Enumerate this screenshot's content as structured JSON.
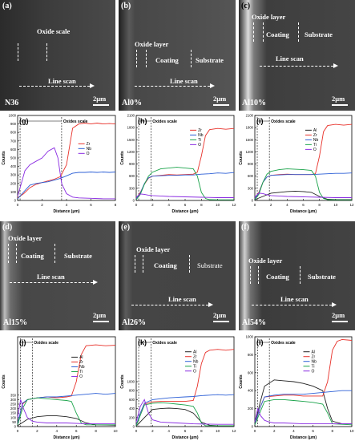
{
  "sem_panels": [
    {
      "id": "a",
      "label": "(a)",
      "sample": "N36",
      "annotations": [
        "Oxide scale"
      ],
      "line_scan": "Line scan",
      "scale": "2μm"
    },
    {
      "id": "b",
      "label": "(b)",
      "sample": "Al0%",
      "annotations": [
        "Oxide layer",
        "Coating",
        "Substrate"
      ],
      "line_scan": "Line scan",
      "scale": "2μm"
    },
    {
      "id": "c",
      "label": "(c)",
      "sample": "Al10%",
      "annotations": [
        "Oxide layer",
        "Coating",
        "Substrate"
      ],
      "line_scan": "Line scan",
      "scale": "2μm"
    },
    {
      "id": "d",
      "label": "(d)",
      "sample": "Al15%",
      "annotations": [
        "Oxide layer",
        "Coating",
        "Substrate"
      ],
      "line_scan": "Line scan",
      "scale": "2μm"
    },
    {
      "id": "e",
      "label": "(e)",
      "sample": "Al26%",
      "annotations": [
        "Oxide layer",
        "Coating",
        "Substrate"
      ],
      "line_scan": "Line scan",
      "scale": "2μm"
    },
    {
      "id": "f",
      "label": "(f)",
      "sample": "Al54%",
      "annotations": [
        "Oxide layer",
        "Coating",
        "Substrate"
      ],
      "line_scan": "Line scan",
      "scale": "2μm"
    }
  ],
  "chart_data": [
    {
      "panel": "(g)",
      "type": "line",
      "xlabel": "Distance (μm)",
      "ylabel": "Counts",
      "annotation": "Oxides scale",
      "xlim": [
        0,
        8
      ],
      "ylim": [
        0,
        1000
      ],
      "xticks": [
        0,
        2,
        4,
        6,
        8
      ],
      "yticks": [
        0,
        100,
        200,
        300,
        400,
        500,
        600,
        700,
        800,
        900,
        1000
      ],
      "series": [
        {
          "name": "Zr",
          "color": "#e8312a",
          "x": [
            0,
            0.5,
            1,
            1.5,
            2,
            2.5,
            3,
            3.5,
            4,
            4.5,
            5,
            5.5,
            6,
            6.5,
            7,
            7.5,
            8
          ],
          "y": [
            30,
            80,
            150,
            190,
            210,
            230,
            250,
            280,
            420,
            850,
            900,
            910,
            900,
            910,
            900,
            905,
            900
          ]
        },
        {
          "name": "Nb",
          "color": "#2c5fd6",
          "x": [
            0,
            0.5,
            1,
            1.5,
            2,
            2.5,
            3,
            3.5,
            4,
            4.5,
            5,
            5.5,
            6,
            6.5,
            7,
            7.5,
            8
          ],
          "y": [
            20,
            100,
            180,
            200,
            210,
            220,
            240,
            260,
            290,
            320,
            330,
            330,
            335,
            330,
            335,
            330,
            335
          ]
        },
        {
          "name": "O",
          "color": "#8a2be2",
          "x": [
            0,
            0.3,
            0.6,
            1,
            1.5,
            2,
            2.5,
            3,
            3.3,
            3.6,
            4,
            4.5,
            5,
            6,
            7,
            8
          ],
          "y": [
            50,
            200,
            350,
            420,
            460,
            500,
            580,
            620,
            500,
            200,
            80,
            40,
            30,
            25,
            20,
            20
          ]
        }
      ]
    },
    {
      "panel": "(h)",
      "type": "line",
      "xlabel": "Distance (μm)",
      "ylabel": "Counts",
      "annotation": "Oxides scale",
      "xlim": [
        0,
        12
      ],
      "ylim": [
        0,
        2100
      ],
      "xticks": [
        0,
        2,
        4,
        6,
        8,
        10,
        12
      ],
      "yticks": [
        0,
        300,
        600,
        900,
        1200,
        1500,
        1800,
        2100
      ],
      "series": [
        {
          "name": "Zr",
          "color": "#e8312a",
          "x": [
            0,
            0.5,
            1,
            1.5,
            2,
            3,
            4,
            5,
            6,
            7,
            7.5,
            8,
            8.5,
            9,
            10,
            11,
            12
          ],
          "y": [
            50,
            200,
            400,
            550,
            600,
            620,
            640,
            630,
            640,
            650,
            700,
            1100,
            1600,
            1750,
            1780,
            1760,
            1780
          ]
        },
        {
          "name": "Nb",
          "color": "#2c5fd6",
          "x": [
            0,
            0.5,
            1,
            1.5,
            2,
            3,
            4,
            5,
            6,
            7,
            7.5,
            8,
            9,
            10,
            11,
            12
          ],
          "y": [
            40,
            180,
            420,
            560,
            600,
            610,
            620,
            620,
            630,
            630,
            640,
            650,
            660,
            680,
            670,
            690
          ]
        },
        {
          "name": "Ti",
          "color": "#1aa34a",
          "x": [
            0,
            0.5,
            1,
            1.5,
            2,
            3,
            4,
            5,
            6,
            7,
            7.5,
            8,
            8.5,
            9,
            10,
            12
          ],
          "y": [
            20,
            150,
            400,
            600,
            700,
            780,
            800,
            820,
            800,
            780,
            600,
            200,
            50,
            20,
            15,
            15
          ]
        },
        {
          "name": "O",
          "color": "#8a2be2",
          "x": [
            0,
            0.5,
            1,
            1.5,
            2,
            3,
            4,
            6,
            8,
            10,
            12
          ],
          "y": [
            80,
            160,
            150,
            130,
            120,
            110,
            100,
            90,
            80,
            70,
            70
          ]
        }
      ]
    },
    {
      "panel": "(i)",
      "type": "line",
      "xlabel": "Distance (μm)",
      "ylabel": "Counts",
      "annotation": "Oxides scale",
      "xlim": [
        0,
        12
      ],
      "ylim": [
        0,
        2100
      ],
      "xticks": [
        0,
        2,
        4,
        6,
        8,
        10,
        12
      ],
      "yticks": [
        0,
        300,
        600,
        900,
        1200,
        1500,
        1800,
        2100
      ],
      "series": [
        {
          "name": "Al",
          "color": "#222222",
          "x": [
            0,
            1,
            2,
            3,
            4,
            5,
            6,
            7,
            8,
            9,
            10,
            12
          ],
          "y": [
            20,
            100,
            180,
            200,
            220,
            230,
            220,
            200,
            100,
            30,
            20,
            20
          ]
        },
        {
          "name": "Zr",
          "color": "#e8312a",
          "x": [
            0,
            0.5,
            1,
            1.5,
            2,
            3,
            4,
            5,
            6,
            7,
            7.5,
            8,
            8.5,
            9,
            10,
            11,
            12
          ],
          "y": [
            50,
            200,
            450,
            580,
            620,
            640,
            650,
            640,
            640,
            640,
            660,
            1100,
            1700,
            1850,
            1880,
            1860,
            1880
          ]
        },
        {
          "name": "Nb",
          "color": "#2c5fd6",
          "x": [
            0,
            0.5,
            1,
            1.5,
            2,
            3,
            4,
            5,
            6,
            7,
            8,
            9,
            10,
            11,
            12
          ],
          "y": [
            40,
            180,
            450,
            580,
            620,
            630,
            640,
            640,
            640,
            640,
            650,
            660,
            670,
            670,
            680
          ]
        },
        {
          "name": "Ti",
          "color": "#1aa34a",
          "x": [
            0,
            0.5,
            1,
            1.5,
            2,
            3,
            4,
            5,
            6,
            7,
            7.5,
            8,
            8.5,
            9,
            10,
            12
          ],
          "y": [
            20,
            150,
            450,
            650,
            720,
            760,
            780,
            770,
            760,
            740,
            600,
            200,
            50,
            20,
            15,
            15
          ]
        },
        {
          "name": "O",
          "color": "#8a2be2",
          "x": [
            0,
            0.5,
            1,
            1.5,
            2,
            3,
            4,
            6,
            8,
            10,
            12
          ],
          "y": [
            80,
            180,
            170,
            140,
            120,
            110,
            100,
            90,
            80,
            70,
            70
          ]
        }
      ]
    },
    {
      "panel": "(j)",
      "type": "line",
      "xlabel": "Distance (μm)",
      "ylabel": "Counts",
      "annotation": "Oxides scale",
      "xlim": [
        0,
        10
      ],
      "ylim": [
        0,
        1000
      ],
      "xticks": [
        0,
        2,
        4,
        6,
        8,
        10
      ],
      "yticks": [
        0,
        50,
        100,
        150,
        200,
        250,
        300,
        350
      ],
      "series": [
        {
          "name": "Al",
          "color": "#222222",
          "x": [
            0,
            1,
            2,
            3,
            4,
            5,
            6,
            7,
            8,
            10
          ],
          "y": [
            10,
            80,
            110,
            120,
            120,
            110,
            90,
            40,
            20,
            15
          ]
        },
        {
          "name": "Zr",
          "color": "#e8312a",
          "x": [
            0,
            0.5,
            1,
            2,
            3,
            4,
            5,
            5.5,
            6,
            6.5,
            7,
            8,
            9,
            10
          ],
          "y": [
            30,
            250,
            300,
            320,
            330,
            320,
            330,
            340,
            500,
            800,
            900,
            910,
            900,
            905
          ]
        },
        {
          "name": "Nb",
          "color": "#2c5fd6",
          "x": [
            0,
            0.5,
            1,
            2,
            3,
            4,
            5,
            6,
            7,
            8,
            9,
            10
          ],
          "y": [
            30,
            260,
            300,
            320,
            330,
            330,
            340,
            350,
            360,
            370,
            360,
            370
          ]
        },
        {
          "name": "Ti",
          "color": "#1aa34a",
          "x": [
            0,
            0.5,
            1,
            2,
            3,
            4,
            5,
            5.5,
            6,
            6.5,
            7,
            10
          ],
          "y": [
            20,
            200,
            300,
            320,
            310,
            300,
            290,
            280,
            150,
            40,
            20,
            20
          ]
        },
        {
          "name": "O",
          "color": "#8a2be2",
          "x": [
            0,
            0.3,
            0.6,
            1,
            1.5,
            2,
            3,
            5,
            7,
            10
          ],
          "y": [
            100,
            300,
            200,
            100,
            60,
            50,
            40,
            40,
            30,
            30
          ]
        }
      ]
    },
    {
      "panel": "(k)",
      "type": "line",
      "xlabel": "Distance (μm)",
      "ylabel": "Counts",
      "annotation": "Oxides scale",
      "xlim": [
        0,
        12
      ],
      "ylim": [
        0,
        2000
      ],
      "xticks": [
        0,
        2,
        4,
        6,
        8,
        10,
        12
      ],
      "yticks": [
        0,
        200,
        400,
        600,
        800,
        1000
      ],
      "series": [
        {
          "name": "Al",
          "color": "#222222",
          "x": [
            0,
            1,
            2,
            3,
            4,
            5,
            6,
            7,
            8,
            9,
            10,
            12
          ],
          "y": [
            10,
            200,
            380,
            400,
            410,
            400,
            380,
            300,
            100,
            30,
            20,
            20
          ]
        },
        {
          "name": "Zr",
          "color": "#e8312a",
          "x": [
            0,
            0.5,
            1,
            2,
            3,
            4,
            5,
            6,
            7,
            7.5,
            8,
            8.5,
            9,
            10,
            11,
            12
          ],
          "y": [
            30,
            300,
            500,
            550,
            560,
            560,
            560,
            560,
            580,
            900,
            1400,
            1650,
            1700,
            1720,
            1700,
            1720
          ]
        },
        {
          "name": "Nb",
          "color": "#2c5fd6",
          "x": [
            0,
            0.5,
            1,
            2,
            3,
            4,
            5,
            6,
            7,
            8,
            9,
            10,
            11,
            12
          ],
          "y": [
            30,
            300,
            520,
            600,
            620,
            640,
            650,
            660,
            670,
            690,
            700,
            710,
            700,
            710
          ]
        },
        {
          "name": "Ti",
          "color": "#1aa34a",
          "x": [
            0,
            0.5,
            1,
            2,
            3,
            4,
            5,
            6,
            7,
            7.5,
            8,
            8.5,
            12
          ],
          "y": [
            20,
            250,
            480,
            520,
            530,
            520,
            500,
            480,
            450,
            300,
            80,
            20,
            20
          ]
        },
        {
          "name": "O",
          "color": "#8a2be2",
          "x": [
            0,
            0.5,
            1,
            1.5,
            2,
            3,
            5,
            7,
            10,
            12
          ],
          "y": [
            100,
            450,
            600,
            300,
            150,
            100,
            80,
            60,
            50,
            50
          ]
        }
      ]
    },
    {
      "panel": "(l)",
      "type": "line",
      "xlabel": "Distance (μm)",
      "ylabel": "Counts",
      "annotation": "Oxides scale",
      "xlim": [
        0,
        10
      ],
      "ylim": [
        0,
        1000
      ],
      "xticks": [
        0,
        2,
        4,
        6,
        8,
        10
      ],
      "yticks": [
        0,
        200,
        400,
        600,
        800,
        1000
      ],
      "series": [
        {
          "name": "Al",
          "color": "#222222",
          "x": [
            0,
            0.5,
            1,
            2,
            3,
            4,
            5,
            6,
            7,
            7.5,
            8,
            9,
            10
          ],
          "y": [
            20,
            250,
            450,
            520,
            510,
            500,
            480,
            450,
            400,
            200,
            60,
            30,
            30
          ]
        },
        {
          "name": "Zr",
          "color": "#e8312a",
          "x": [
            0,
            0.5,
            1,
            2,
            3,
            4,
            5,
            6,
            7,
            7.5,
            8,
            8.5,
            9,
            10
          ],
          "y": [
            20,
            200,
            330,
            340,
            350,
            350,
            340,
            340,
            340,
            500,
            850,
            950,
            970,
            960
          ]
        },
        {
          "name": "Nb",
          "color": "#2c5fd6",
          "x": [
            0,
            0.5,
            1,
            2,
            3,
            4,
            5,
            6,
            7,
            8,
            9,
            10
          ],
          "y": [
            20,
            200,
            330,
            350,
            360,
            360,
            360,
            370,
            380,
            390,
            400,
            400
          ]
        },
        {
          "name": "Ti",
          "color": "#1aa34a",
          "x": [
            0,
            0.5,
            1,
            2,
            3,
            4,
            5,
            6,
            7,
            7.5,
            8,
            10
          ],
          "y": [
            20,
            150,
            280,
            300,
            300,
            290,
            280,
            270,
            250,
            150,
            30,
            20
          ]
        },
        {
          "name": "O",
          "color": "#8a2be2",
          "x": [
            0,
            0.3,
            0.6,
            1,
            1.5,
            2,
            3,
            5,
            7,
            10
          ],
          "y": [
            50,
            200,
            120,
            70,
            50,
            40,
            40,
            30,
            30,
            30
          ]
        }
      ]
    }
  ]
}
